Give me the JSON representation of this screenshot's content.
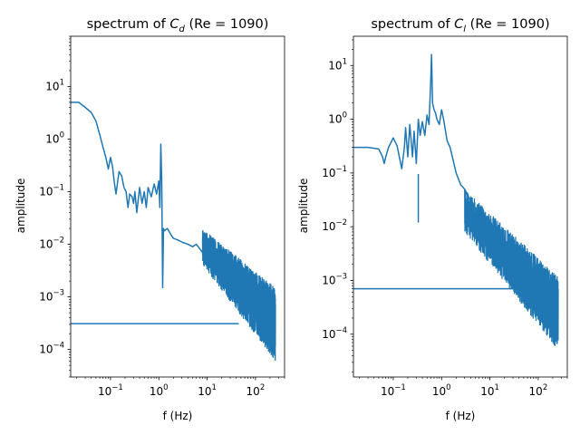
{
  "chart_data": [
    {
      "type": "line",
      "title_prefix": "spectrum of ",
      "title_var": "C",
      "title_sub": "d",
      "title_suffix": " (Re = 1090)",
      "xlabel": "f (Hz)",
      "ylabel": "amplitude",
      "xscale": "log",
      "yscale": "log",
      "xlim": [
        0.015,
        400
      ],
      "ylim": [
        3e-05,
        90
      ],
      "xticks": [
        {
          "v": 0.1,
          "base": "10",
          "exp": "−1"
        },
        {
          "v": 1,
          "base": "10",
          "exp": "0"
        },
        {
          "v": 10,
          "base": "10",
          "exp": "1"
        },
        {
          "v": 100,
          "base": "10",
          "exp": "2"
        }
      ],
      "yticks": [
        {
          "v": 0.0001,
          "base": "10",
          "exp": "−4"
        },
        {
          "v": 0.001,
          "base": "10",
          "exp": "−3"
        },
        {
          "v": 0.01,
          "base": "10",
          "exp": "−2"
        },
        {
          "v": 0.1,
          "base": "10",
          "exp": "−1"
        },
        {
          "v": 1,
          "base": "10",
          "exp": "0"
        },
        {
          "v": 10,
          "base": "10",
          "exp": "1"
        }
      ],
      "color": "#1f77b4",
      "series": [
        {
          "x": [
            0.015,
            0.022,
            0.03,
            0.04,
            0.05,
            0.06,
            0.07,
            0.08,
            0.09,
            0.1,
            0.11,
            0.12,
            0.13,
            0.15,
            0.17,
            0.19,
            0.21,
            0.23,
            0.25,
            0.28,
            0.3,
            0.32,
            0.35,
            0.4,
            0.45,
            0.5,
            0.55,
            0.6,
            0.7,
            0.8,
            0.9,
            1.0,
            1.05,
            1.1,
            1.15,
            1.2,
            1.25,
            1.3,
            1.5,
            1.8,
            2.0,
            2.5,
            3,
            4,
            5,
            6,
            8,
            10,
            12,
            15,
            20,
            25,
            30,
            40,
            50,
            60,
            70,
            80,
            100,
            120,
            150,
            180,
            200,
            230,
            250
          ],
          "y": [
            5.0,
            5.0,
            4.0,
            3.2,
            2.2,
            1.2,
            0.7,
            0.45,
            0.27,
            0.45,
            0.3,
            0.15,
            0.09,
            0.24,
            0.2,
            0.12,
            0.1,
            0.05,
            0.09,
            0.08,
            0.06,
            0.1,
            0.04,
            0.12,
            0.06,
            0.1,
            0.05,
            0.12,
            0.08,
            0.14,
            0.09,
            0.16,
            0.05,
            0.8,
            0.15,
            0.0015,
            0.02,
            0.018,
            0.02,
            0.015,
            0.013,
            0.012,
            0.011,
            0.01,
            0.009,
            0.01,
            0.007,
            0.006,
            0.01,
            0.004,
            0.005,
            0.004,
            0.002,
            0.0035,
            0.0015,
            0.002,
            0.0009,
            0.0015,
            0.0006,
            0.001,
            0.0004,
            0.0006,
            0.0002,
            8e-05,
            0.0003
          ]
        },
        {
          "x": [
            0.015,
            45
          ],
          "y": [
            0.00031,
            0.00031
          ]
        }
      ],
      "noise": {
        "x_start": 8,
        "x_end": 260,
        "lo_start": 0.004,
        "hi_start": 0.02,
        "lo_end": 6e-05,
        "hi_end": 0.0015
      }
    },
    {
      "type": "line",
      "title_prefix": "spectrum of ",
      "title_var": "C",
      "title_sub": "l",
      "title_suffix": " (Re = 1090)",
      "xlabel": "f (Hz)",
      "ylabel": "amplitude",
      "xscale": "log",
      "yscale": "log",
      "xlim": [
        0.015,
        400
      ],
      "ylim": [
        1.6e-05,
        35
      ],
      "xticks": [
        {
          "v": 0.1,
          "base": "10",
          "exp": "−1"
        },
        {
          "v": 1,
          "base": "10",
          "exp": "0"
        },
        {
          "v": 10,
          "base": "10",
          "exp": "1"
        },
        {
          "v": 100,
          "base": "10",
          "exp": "2"
        }
      ],
      "yticks": [
        {
          "v": 0.0001,
          "base": "10",
          "exp": "−4"
        },
        {
          "v": 0.001,
          "base": "10",
          "exp": "−3"
        },
        {
          "v": 0.01,
          "base": "10",
          "exp": "−2"
        },
        {
          "v": 0.1,
          "base": "10",
          "exp": "−1"
        },
        {
          "v": 1,
          "base": "10",
          "exp": "0"
        },
        {
          "v": 10,
          "base": "10",
          "exp": "1"
        }
      ],
      "color": "#1f77b4",
      "series": [
        {
          "x": [
            0.015,
            0.03,
            0.05,
            0.06,
            0.065,
            0.07,
            0.08,
            0.1,
            0.12,
            0.15,
            0.17,
            0.18,
            0.2,
            0.22,
            0.25,
            0.27,
            0.3,
            0.33,
            0.36,
            0.4,
            0.45,
            0.5,
            0.55,
            0.6,
            0.62,
            0.65,
            0.7,
            0.75,
            0.8,
            0.9,
            1.0,
            1.1,
            1.3,
            1.5,
            1.8,
            2.0,
            2.2,
            2.5,
            3,
            4,
            5,
            6,
            8,
            10,
            12,
            15,
            20,
            25,
            30,
            40,
            50,
            60,
            70,
            80,
            100,
            120,
            150,
            180,
            200,
            230,
            250
          ],
          "y": [
            0.3,
            0.3,
            0.28,
            0.2,
            0.15,
            0.2,
            0.3,
            0.45,
            0.32,
            0.12,
            0.3,
            0.7,
            0.2,
            0.8,
            0.2,
            0.6,
            0.15,
            1.0,
            0.5,
            0.9,
            0.5,
            1.2,
            0.8,
            6.0,
            16.0,
            2.0,
            1.5,
            1.3,
            1.0,
            0.8,
            1.5,
            1.0,
            0.4,
            0.3,
            0.15,
            0.1,
            0.08,
            0.06,
            0.05,
            0.03,
            0.022,
            0.018,
            0.011,
            0.009,
            0.007,
            0.005,
            0.004,
            0.0035,
            0.002,
            0.0025,
            0.001,
            0.0015,
            0.0007,
            0.001,
            0.0005,
            0.0008,
            0.00025,
            0.0005,
            0.00015,
            0.0003,
            0.0001
          ]
        },
        {
          "x": [
            0.015,
            45
          ],
          "y": [
            0.0007,
            0.0007
          ]
        }
      ],
      "noise": {
        "x_start": 3,
        "x_end": 260,
        "lo_start": 0.008,
        "hi_start": 0.05,
        "lo_end": 5e-05,
        "hi_end": 0.0012
      },
      "dips": [
        {
          "x": 0.33,
          "lo": 0.012
        }
      ]
    }
  ]
}
